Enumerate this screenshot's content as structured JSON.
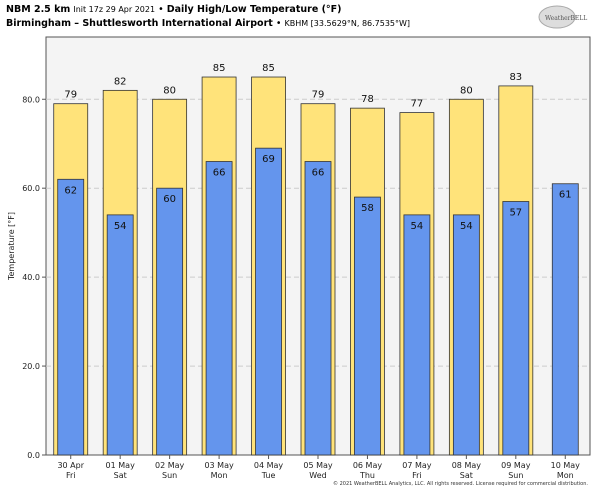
{
  "header": {
    "model": "NBM 2.5 km",
    "init": "Init 17z 29 Apr 2021",
    "sep": "•",
    "product": "Daily High/Low Temperature (°F)",
    "station_name": "Birmingham – Shuttlesworth International Airport",
    "station_info": "KBHM [33.5629°N, 86.7535°W]"
  },
  "logo": {
    "text": "WeatherBELL"
  },
  "footer": {
    "copyright": "© 2021 WeatherBELL Analytics, LLC. All rights reserved. License required for commercial distribution."
  },
  "chart_data": {
    "type": "bar",
    "categories": [
      "30 Apr|Fri",
      "01 May|Sat",
      "02 May|Sun",
      "03 May|Mon",
      "04 May|Tue",
      "05 May|Wed",
      "06 May|Thu",
      "07 May|Fri",
      "08 May|Sat",
      "09 May|Sun",
      "10 May|Mon"
    ],
    "series": [
      {
        "name": "High",
        "color": "#ffe37a",
        "values": [
          79,
          82,
          80,
          85,
          85,
          79,
          78,
          77,
          80,
          83,
          null
        ]
      },
      {
        "name": "Low",
        "color": "#6495ed",
        "values": [
          62,
          54,
          60,
          66,
          69,
          66,
          58,
          54,
          54,
          57,
          61
        ]
      }
    ],
    "ylabel": "Temperature [°F]",
    "ylim": [
      0,
      94
    ],
    "yticks": [
      "0.0",
      "20.0",
      "40.0",
      "60.0",
      "80.0"
    ],
    "grid": true
  }
}
